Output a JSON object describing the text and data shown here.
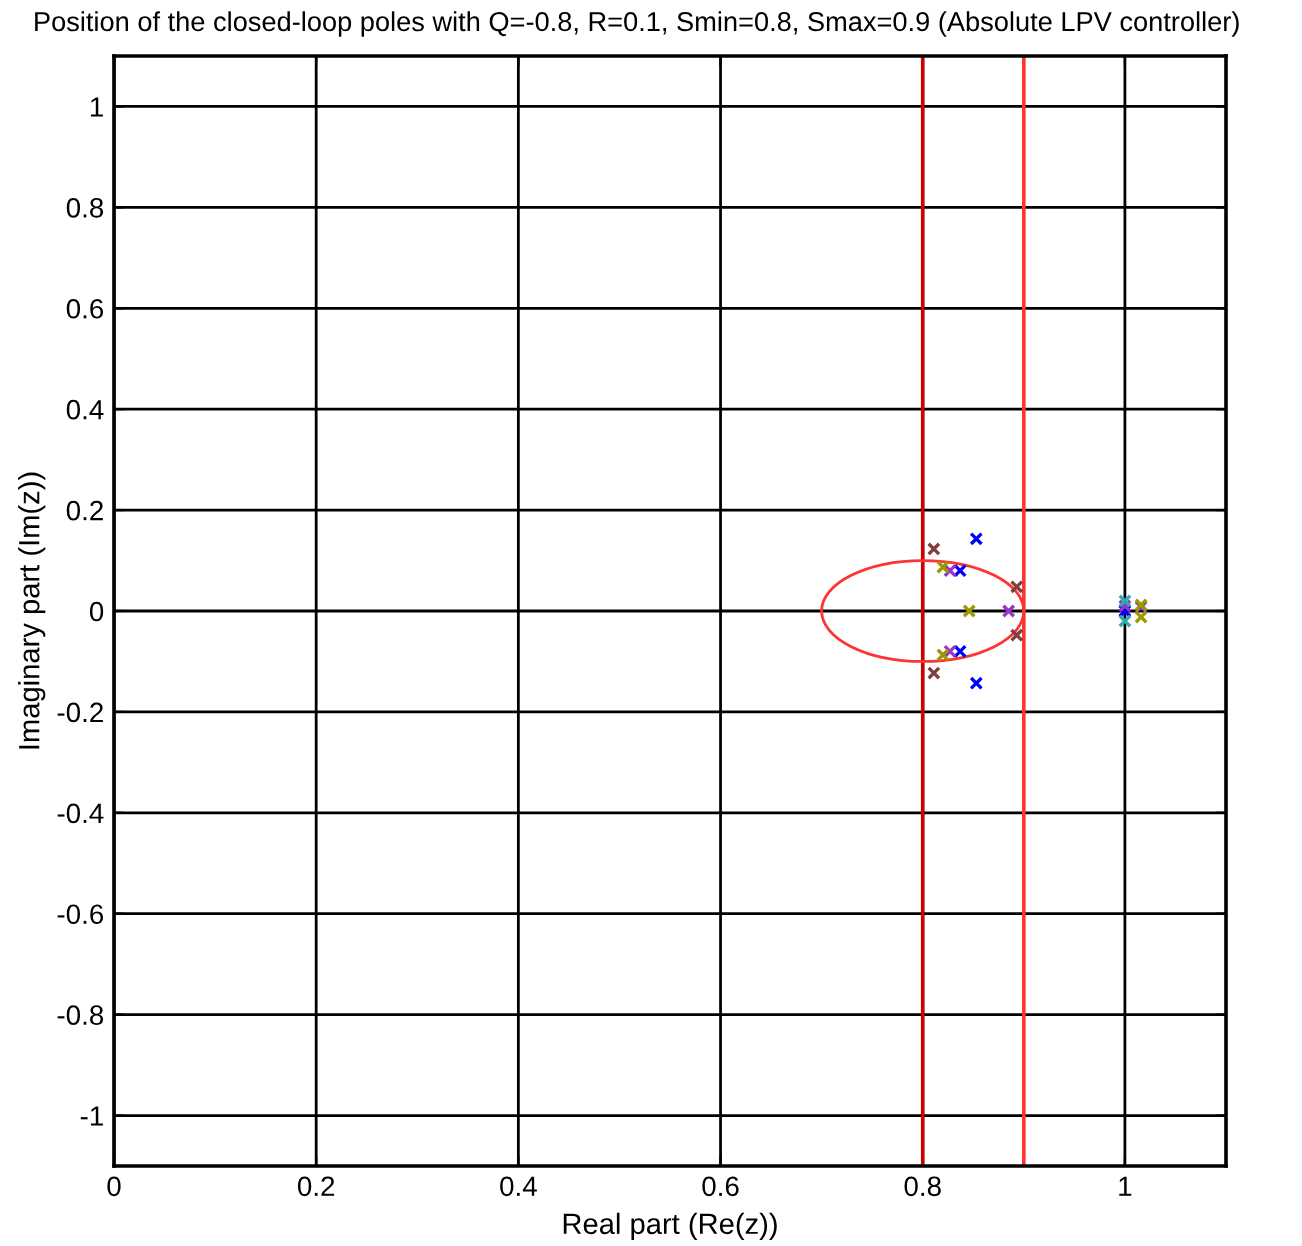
{
  "chart_data": {
    "type": "scatter",
    "title": "Position of the closed-loop poles with Q=-0.8, R=0.1, Smin=0.8, Smax=0.9 (Absolute LPV controller)",
    "xlabel": "Real part (Re(z))",
    "ylabel": "Imaginary part (Im(z))",
    "xlim": [
      0,
      1.1
    ],
    "ylim": [
      -1.1,
      1.1
    ],
    "xticks": [
      0,
      0.2,
      0.4,
      0.6,
      0.8,
      1
    ],
    "yticks": [
      -1,
      -0.8,
      -0.6,
      -0.4,
      -0.2,
      0,
      0.2,
      0.4,
      0.6,
      0.8,
      1
    ],
    "grid": true,
    "marker": "cross",
    "series": [
      {
        "color": "#7f3f3f",
        "x": [
          0.811,
          0.811,
          0.893,
          0.893
        ],
        "values": [
          0.123,
          -0.123,
          0.048,
          -0.048
        ]
      },
      {
        "color": "#0000ff",
        "x": [
          0.853,
          0.853,
          0.837,
          0.837,
          1.0
        ],
        "values": [
          0.143,
          -0.143,
          0.08,
          -0.08,
          0
        ]
      },
      {
        "color": "#9933cc",
        "x": [
          0.827,
          0.827,
          0.885,
          1.0,
          1.016
        ],
        "values": [
          0.08,
          -0.08,
          0,
          0.01,
          0.008
        ]
      },
      {
        "color": "#999900",
        "x": [
          0.82,
          0.82,
          0.846,
          1.016,
          1.016
        ],
        "values": [
          0.087,
          -0.087,
          0,
          0.012,
          -0.012
        ]
      },
      {
        "color": "#33aaaa",
        "x": [
          1.0,
          1.0
        ],
        "values": [
          0.02,
          -0.02
        ]
      }
    ],
    "ref_lines": [
      {
        "axis": "x",
        "value": 0.8,
        "color": "#cc0000"
      },
      {
        "axis": "x",
        "value": 0.9,
        "color": "#ff3333"
      }
    ]
  }
}
